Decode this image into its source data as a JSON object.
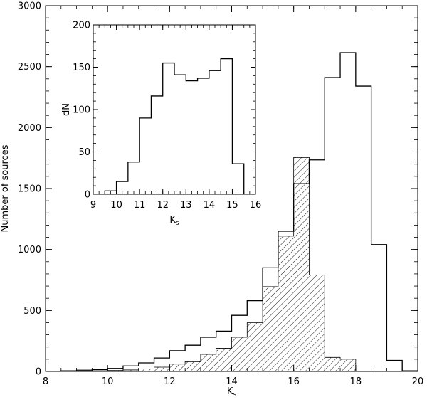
{
  "chart_data": [
    {
      "type": "bar",
      "histogram": true,
      "xlabel": "K",
      "xlabel_subscript": "s",
      "ylabel": "Number of sources",
      "xlim": [
        8,
        20
      ],
      "ylim": [
        0,
        3000
      ],
      "x_ticks": [
        8,
        10,
        12,
        14,
        16,
        18,
        20
      ],
      "y_ticks": [
        0,
        500,
        1000,
        1500,
        2000,
        2500,
        3000
      ],
      "grid": false,
      "legend": "none",
      "bin_edges": [
        8.5,
        9.0,
        9.5,
        10.0,
        10.5,
        11.0,
        11.5,
        12.0,
        12.5,
        13.0,
        13.5,
        14.0,
        14.5,
        15.0,
        15.5,
        16.0,
        16.5,
        17.0,
        17.5,
        18.0,
        18.5,
        19.0,
        19.5,
        20.0
      ],
      "series": [
        {
          "style": "outline",
          "values": [
            5,
            10,
            15,
            25,
            45,
            70,
            110,
            170,
            215,
            280,
            330,
            460,
            580,
            850,
            1150,
            1540,
            1735,
            2410,
            2615,
            2340,
            1040,
            90,
            5
          ]
        },
        {
          "style": "hatched",
          "values": [
            0,
            0,
            5,
            8,
            12,
            20,
            35,
            60,
            80,
            140,
            190,
            280,
            400,
            695,
            1110,
            1755,
            790,
            115,
            100,
            0,
            0,
            0,
            0
          ]
        }
      ]
    },
    {
      "type": "bar",
      "histogram": true,
      "inset": true,
      "xlabel": "K",
      "xlabel_subscript": "s",
      "ylabel": "dN",
      "xlim": [
        9,
        16
      ],
      "ylim": [
        0,
        200
      ],
      "x_ticks": [
        9,
        10,
        11,
        12,
        13,
        14,
        15,
        16
      ],
      "y_ticks": [
        0,
        50,
        100,
        150,
        200
      ],
      "grid": false,
      "legend": "none",
      "bin_edges": [
        9.5,
        9.75,
        10.0,
        10.25,
        10.5,
        10.75,
        11.0,
        11.25,
        11.5,
        11.75,
        12.0,
        12.25,
        12.5,
        12.75,
        13.0,
        13.25,
        13.5,
        13.75,
        14.0,
        14.25,
        14.5,
        14.75,
        15.0,
        15.25,
        15.5
      ],
      "series": [
        {
          "style": "outline",
          "values": [
            4,
            4,
            15,
            15,
            38,
            38,
            90,
            90,
            116,
            116,
            155,
            155,
            141,
            141,
            134,
            134,
            137,
            137,
            146,
            146,
            160,
            160,
            36,
            36
          ]
        }
      ]
    }
  ]
}
